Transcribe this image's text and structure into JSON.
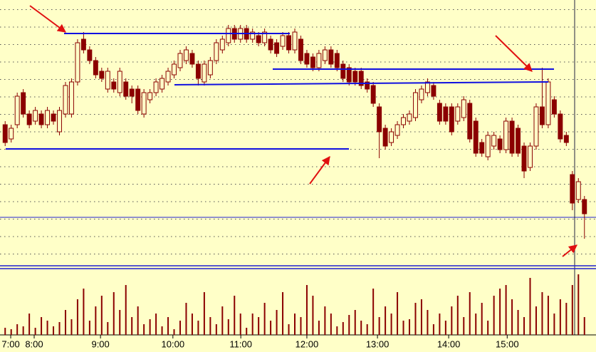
{
  "chart_data": [
    {
      "type": "candlestick",
      "color": "#8b0000",
      "xlim": [
        -0.5,
        96.5
      ],
      "ylim": [
        0,
        370
      ],
      "open": [
        195,
        175,
        195,
        240,
        210,
        200,
        210,
        195,
        210,
        185,
        210,
        210,
        255,
        315,
        300,
        285,
        270,
        245,
        255,
        240,
        255,
        245,
        245,
        210,
        230,
        240,
        245,
        255,
        265,
        275,
        285,
        295,
        280,
        255,
        265,
        285,
        300,
        310,
        330,
        315,
        330,
        315,
        320,
        310,
        315,
        310,
        305,
        320,
        300,
        315,
        295,
        290,
        275,
        285,
        300,
        295,
        280,
        275,
        270,
        270,
        255,
        250,
        220,
        190,
        170,
        180,
        195,
        200,
        205,
        230,
        240,
        250,
        225,
        220,
        220,
        200,
        205,
        225,
        200,
        170,
        150,
        165,
        175,
        160,
        200,
        190,
        165,
        135,
        165,
        220,
        195,
        230,
        210,
        180,
        125,
        90,
        90
      ],
      "high": [
        200,
        195,
        240,
        245,
        215,
        220,
        215,
        220,
        215,
        220,
        255,
        260,
        315,
        325,
        305,
        290,
        275,
        275,
        260,
        275,
        260,
        250,
        250,
        245,
        245,
        260,
        265,
        275,
        285,
        300,
        305,
        300,
        285,
        285,
        290,
        315,
        320,
        335,
        335,
        335,
        335,
        330,
        325,
        330,
        320,
        315,
        325,
        325,
        330,
        320,
        300,
        295,
        300,
        305,
        305,
        300,
        285,
        280,
        275,
        275,
        260,
        255,
        225,
        195,
        190,
        200,
        210,
        215,
        245,
        250,
        260,
        255,
        230,
        225,
        225,
        225,
        235,
        230,
        205,
        175,
        185,
        185,
        180,
        205,
        205,
        195,
        170,
        170,
        225,
        275,
        260,
        235,
        215,
        185,
        130,
        120,
        95
      ],
      "low": [
        165,
        170,
        190,
        205,
        190,
        195,
        190,
        190,
        195,
        180,
        205,
        205,
        250,
        295,
        280,
        260,
        255,
        240,
        240,
        235,
        230,
        225,
        210,
        205,
        225,
        235,
        240,
        250,
        260,
        270,
        280,
        275,
        250,
        250,
        260,
        280,
        295,
        305,
        310,
        310,
        310,
        310,
        305,
        305,
        295,
        290,
        300,
        295,
        295,
        280,
        275,
        270,
        270,
        280,
        275,
        270,
        255,
        250,
        250,
        245,
        240,
        220,
        148,
        160,
        165,
        175,
        190,
        195,
        200,
        225,
        235,
        230,
        195,
        195,
        180,
        195,
        200,
        170,
        150,
        150,
        145,
        160,
        155,
        155,
        150,
        150,
        120,
        130,
        160,
        190,
        190,
        205,
        170,
        165,
        75,
        85,
        35
      ],
      "close": [
        170,
        190,
        235,
        210,
        195,
        215,
        195,
        215,
        200,
        215,
        250,
        255,
        310,
        300,
        285,
        265,
        260,
        270,
        245,
        270,
        235,
        235,
        215,
        240,
        240,
        255,
        260,
        270,
        280,
        295,
        300,
        280,
        260,
        280,
        285,
        310,
        315,
        330,
        315,
        330,
        315,
        325,
        310,
        325,
        300,
        295,
        320,
        300,
        325,
        285,
        280,
        275,
        295,
        300,
        280,
        275,
        260,
        255,
        255,
        250,
        245,
        225,
        185,
        165,
        185,
        195,
        205,
        210,
        240,
        245,
        255,
        235,
        200,
        200,
        185,
        220,
        230,
        175,
        155,
        155,
        180,
        180,
        160,
        200,
        155,
        155,
        130,
        165,
        220,
        195,
        255,
        210,
        175,
        170,
        85,
        115,
        70
      ]
    },
    {
      "type": "bar",
      "color": "#8b0000",
      "xlim": [
        -0.5,
        96.5
      ],
      "ylim": [
        0,
        92
      ],
      "values": [
        10,
        8,
        15,
        12,
        30,
        10,
        25,
        20,
        12,
        18,
        35,
        22,
        50,
        65,
        20,
        40,
        55,
        18,
        60,
        35,
        70,
        25,
        40,
        15,
        22,
        30,
        12,
        25,
        8,
        20,
        45,
        30,
        20,
        60,
        25,
        15,
        40,
        22,
        55,
        30,
        10,
        30,
        25,
        45,
        20,
        35,
        60,
        15,
        30,
        25,
        70,
        55,
        20,
        40,
        30,
        12,
        18,
        28,
        35,
        20,
        15,
        65,
        25,
        40,
        30,
        60,
        20,
        22,
        45,
        50,
        35,
        15,
        30,
        20,
        40,
        55,
        25,
        60,
        30,
        45,
        20,
        55,
        65,
        70,
        50,
        35,
        25,
        80,
        40,
        60,
        55,
        30,
        50,
        45,
        70,
        85,
        25
      ],
      "xticks": [
        {
          "value": 0.92,
          "label": "7:00"
        },
        {
          "value": 4.81,
          "label": "8:00"
        },
        {
          "value": 15.8,
          "label": "9:00"
        },
        {
          "value": 27.8,
          "label": "10:00"
        },
        {
          "value": 39.05,
          "label": "11:00"
        },
        {
          "value": 50.0,
          "label": "12:00"
        },
        {
          "value": 61.7,
          "label": "13:00"
        },
        {
          "value": 73.5,
          "label": "14:00"
        },
        {
          "value": 83.2,
          "label": "15:00"
        }
      ]
    }
  ]
}
